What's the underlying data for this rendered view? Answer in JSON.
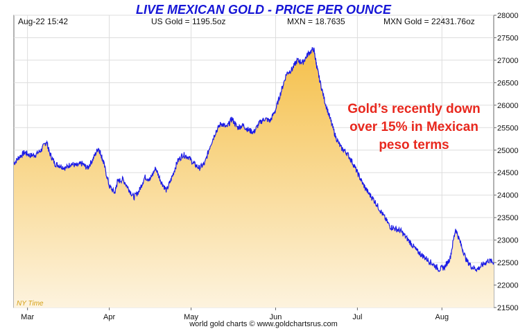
{
  "header": {
    "title": "LIVE MEXICAN GOLD - PRICE PER OUNCE",
    "date_time": "Aug-22  15:42",
    "us_gold": "US Gold = 1195.5oz",
    "mxn_rate": "MXN = 18.7635",
    "mxn_gold": "MXN Gold = 22431.76oz"
  },
  "annotation": [
    "Gold’s recently down",
    "over 15% in Mexican",
    "peso terms"
  ],
  "timezone_label": "NY Time",
  "footer": "world gold charts © www.goldchartsrus.com",
  "colors": {
    "line": "#1a1ae6",
    "fill_top": "#f5c04a",
    "fill_bottom": "#fdf3de",
    "title": "#1515d6",
    "annotation": "#e8281e"
  },
  "chart_data": {
    "type": "area",
    "title": "LIVE MEXICAN GOLD - PRICE PER OUNCE",
    "xlabel": "",
    "ylabel": "",
    "x_range_days": [
      0,
      176
    ],
    "ylim": [
      21500,
      28000
    ],
    "y_ticks": [
      21500,
      22000,
      22500,
      23000,
      23500,
      24000,
      24500,
      25000,
      25500,
      26000,
      26500,
      27000,
      27500,
      28000
    ],
    "x_ticks": [
      {
        "label": "Mar",
        "day": 5
      },
      {
        "label": "Apr",
        "day": 35
      },
      {
        "label": "May",
        "day": 65
      },
      {
        "label": "Jun",
        "day": 96
      },
      {
        "label": "Jul",
        "day": 126
      },
      {
        "label": "Aug",
        "day": 157
      }
    ],
    "grid": true,
    "series": [
      {
        "x": [
          0,
          2,
          4,
          6,
          8,
          10,
          12,
          13,
          15,
          17,
          19,
          21,
          23,
          25,
          27,
          29,
          31,
          32,
          33,
          35,
          37,
          38,
          40,
          42,
          44,
          46,
          48,
          50,
          52,
          54,
          56,
          58,
          60,
          62,
          64,
          66,
          68,
          70,
          72,
          74,
          76,
          78,
          80,
          82,
          84,
          86,
          88,
          90,
          92,
          94,
          96,
          98,
          100,
          102,
          104,
          106,
          108,
          110,
          111,
          112,
          114,
          116,
          118,
          120,
          122,
          124,
          126,
          128,
          130,
          132,
          134,
          136,
          138,
          140,
          142,
          144,
          146,
          148,
          150,
          152,
          154,
          156,
          158,
          160,
          162,
          164,
          166,
          168,
          170,
          172,
          174,
          176
        ],
        "values": [
          24700,
          24850,
          24950,
          24880,
          24900,
          25000,
          25200,
          24950,
          24700,
          24650,
          24600,
          24700,
          24650,
          24700,
          24600,
          24800,
          25050,
          24900,
          24700,
          24200,
          24050,
          24300,
          24350,
          24150,
          23950,
          24100,
          24400,
          24350,
          24600,
          24300,
          24100,
          24400,
          24750,
          24900,
          24850,
          24700,
          24600,
          24700,
          25100,
          25400,
          25600,
          25500,
          25700,
          25500,
          25550,
          25450,
          25400,
          25600,
          25700,
          25650,
          25900,
          26300,
          26700,
          26800,
          27000,
          26950,
          27150,
          27250,
          26900,
          26600,
          26100,
          25700,
          25300,
          25050,
          24950,
          24750,
          24500,
          24250,
          24050,
          23900,
          23700,
          23500,
          23300,
          23250,
          23200,
          23050,
          22900,
          22750,
          22650,
          22550,
          22450,
          22350,
          22400,
          22600,
          23250,
          22900,
          22550,
          22400,
          22350,
          22450,
          22550,
          22500
        ]
      }
    ]
  }
}
